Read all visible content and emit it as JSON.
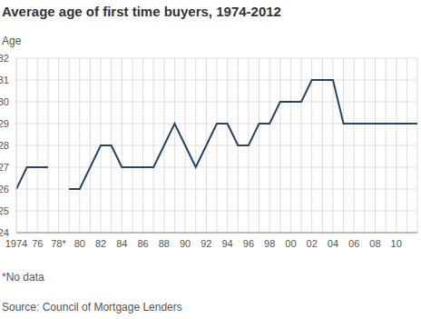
{
  "chart_data": {
    "type": "line",
    "title": "Average age of first time buyers, 1974-2012",
    "ylabel": "Age",
    "annotations": [
      "*No data",
      "Source: Council of Mortgage Lenders"
    ],
    "categories": [
      "1974",
      null,
      "76",
      null,
      "78*",
      null,
      "80",
      null,
      "82",
      null,
      "84",
      null,
      "86",
      null,
      "88",
      null,
      "90",
      null,
      "92",
      null,
      "94",
      null,
      "96",
      null,
      "98",
      null,
      "00",
      null,
      "02",
      null,
      "04",
      null,
      "06",
      null,
      "08",
      null,
      "10",
      null,
      null
    ],
    "values": [
      26,
      27,
      27,
      27,
      null,
      26,
      26,
      27,
      28,
      28,
      27,
      27,
      27,
      27,
      28,
      29,
      28,
      27,
      28,
      29,
      29,
      28,
      28,
      29,
      29,
      30,
      30,
      30,
      31,
      31,
      31,
      29,
      29,
      29,
      29,
      29,
      29,
      29,
      29
    ],
    "color": "#27445f",
    "ylim": [
      24,
      32
    ],
    "yticks": [
      24,
      25,
      26,
      27,
      28,
      29,
      30,
      31,
      32
    ],
    "grid": true
  }
}
